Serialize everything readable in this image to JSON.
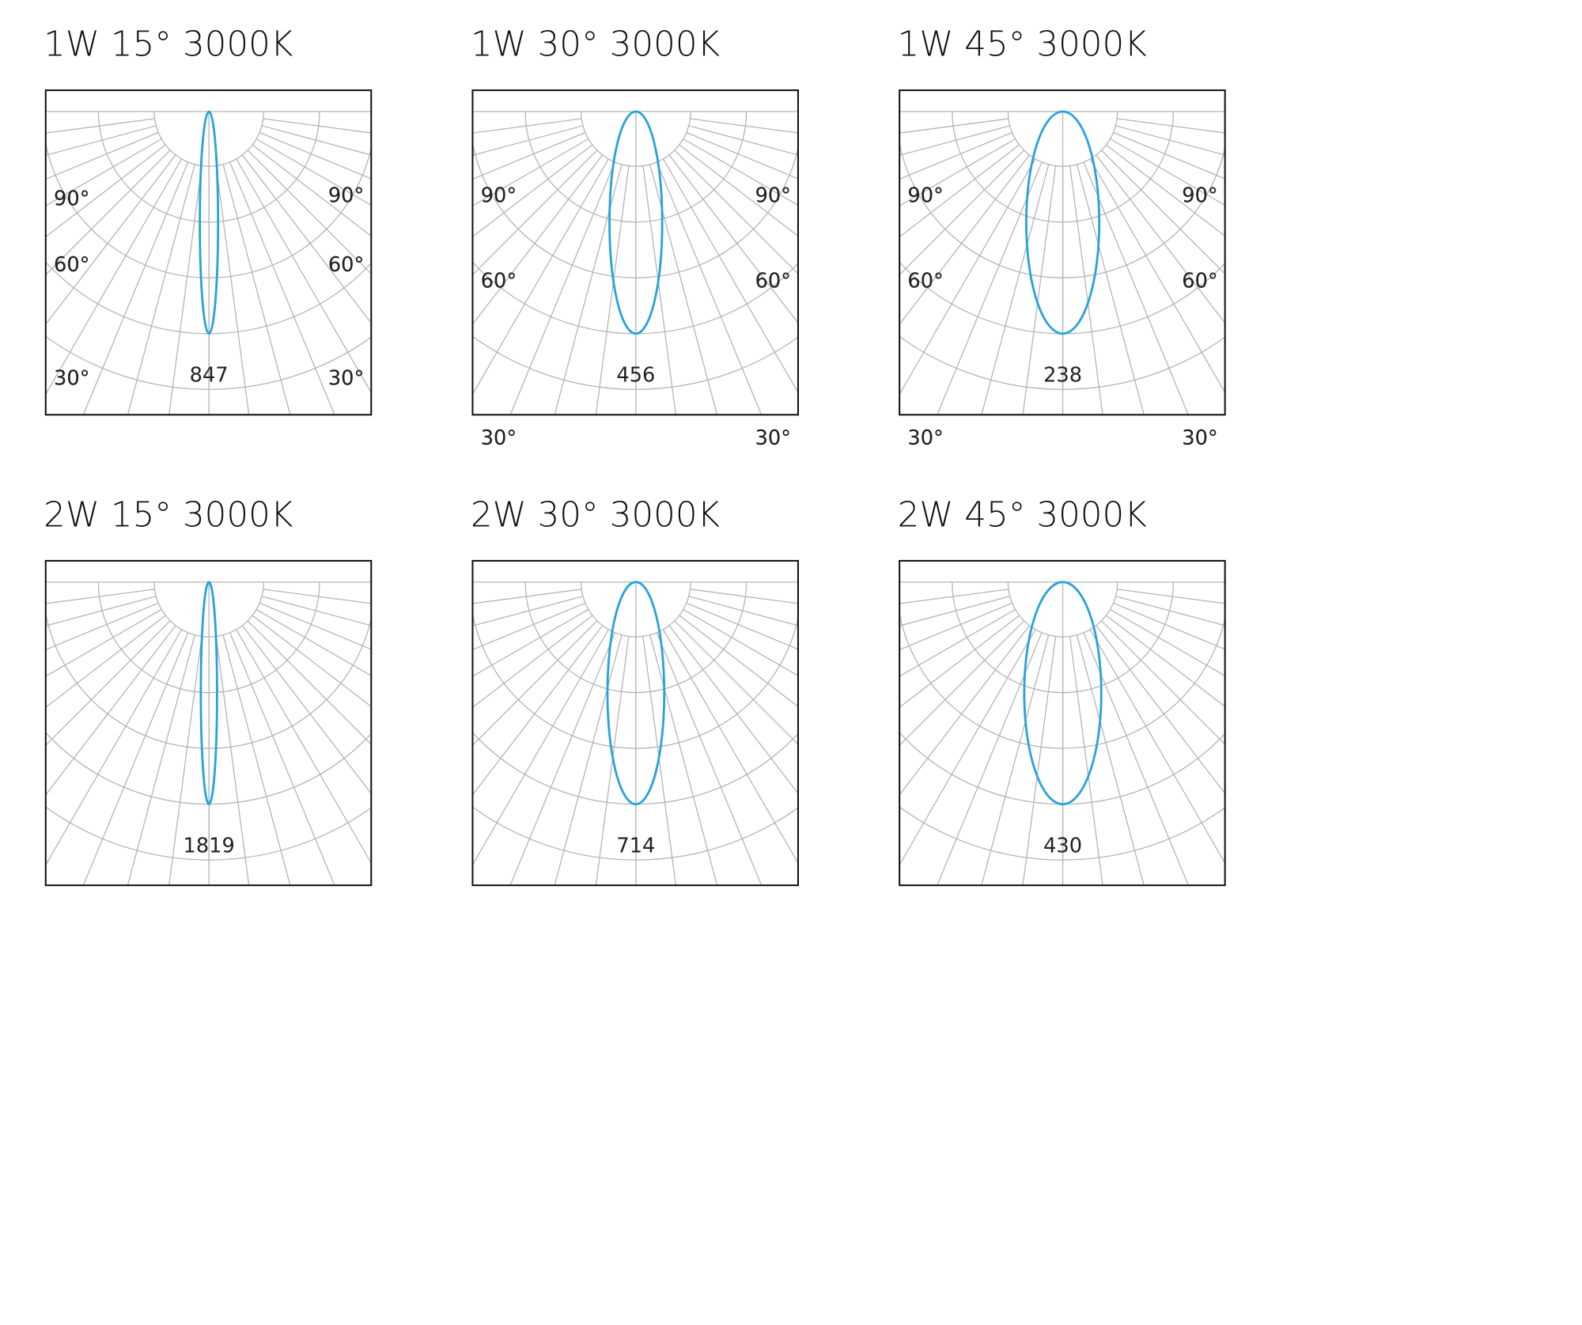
{
  "angle_labels": [
    "90°",
    "60°",
    "30°"
  ],
  "diagrams": [
    {
      "title": "1W 15°  3000K",
      "peak": "847"
    },
    {
      "title": "1W  30°  3000K",
      "peak": "456"
    },
    {
      "title": "1W  45°  3000K",
      "peak": "238"
    },
    {
      "title": "2W  15°  3000K",
      "peak": "1819"
    },
    {
      "title": "2W  30°  3000K",
      "peak": "714"
    },
    {
      "title": "2W  45°  3000K",
      "peak": "430"
    }
  ]
}
